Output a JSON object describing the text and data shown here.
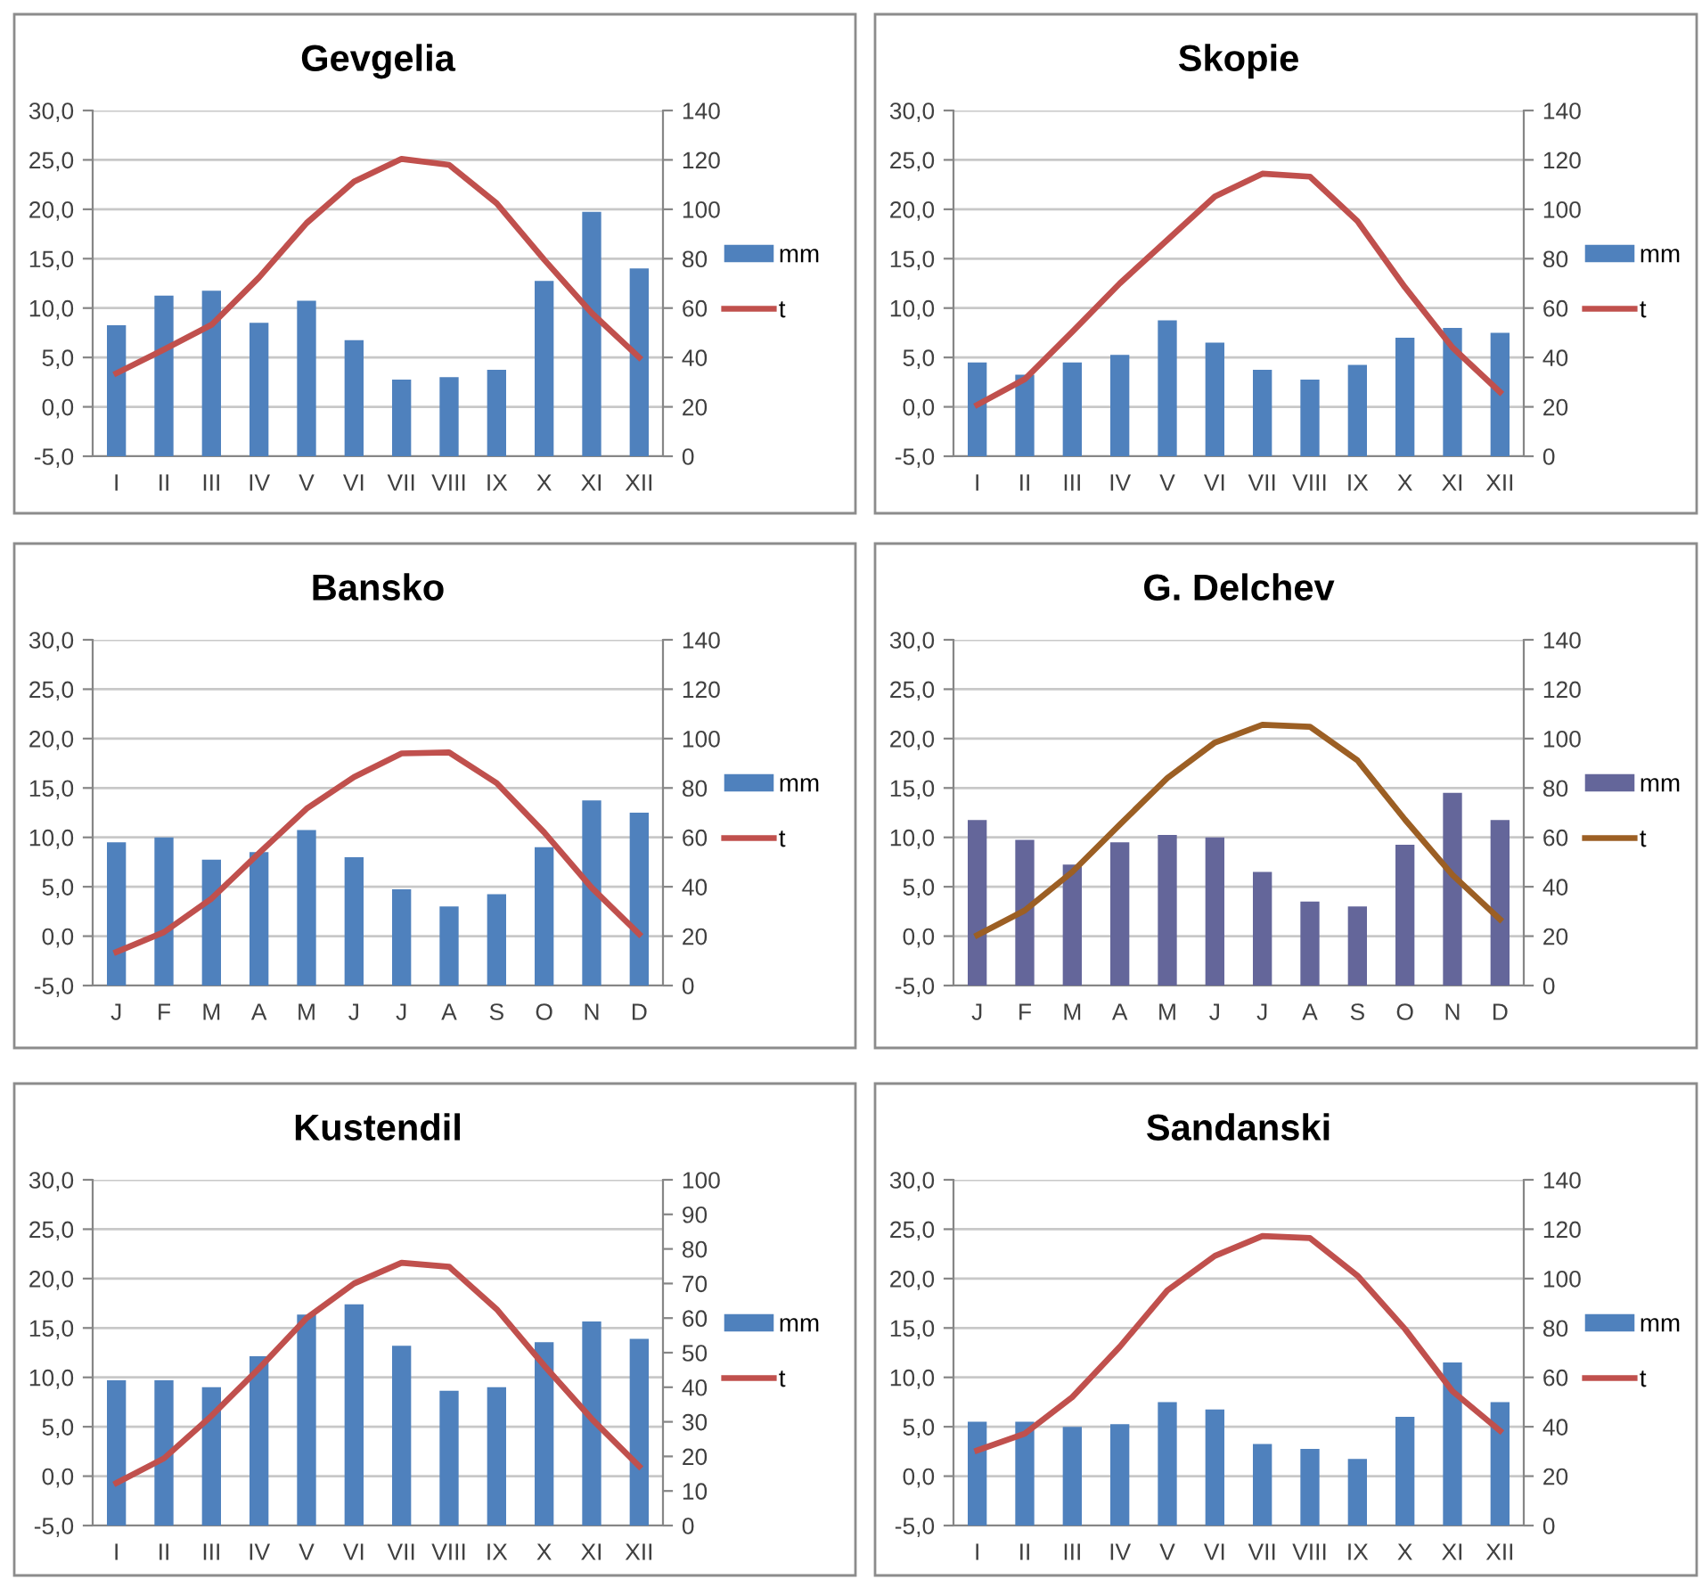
{
  "chart_data": [
    {
      "type": "bar",
      "title": "Gevgelia",
      "categories": [
        "I",
        "II",
        "III",
        "IV",
        "V",
        "VI",
        "VII",
        "VIII",
        "IX",
        "X",
        "XI",
        "XII"
      ],
      "series": [
        {
          "name": "mm",
          "axis": "y2",
          "color": "#4f81bd",
          "values": [
            53,
            65,
            67,
            54,
            63,
            47,
            31,
            32,
            35,
            71,
            99,
            76
          ]
        },
        {
          "name": "t",
          "type": "line",
          "color": "#c0504d",
          "values": [
            3.4,
            5.8,
            8.3,
            13.1,
            18.6,
            22.8,
            25.1,
            24.5,
            20.6,
            14.9,
            9.5,
            5.0
          ]
        }
      ],
      "ylim": [
        -5,
        30
      ],
      "yticks": [
        {
          "value": -5,
          "label": "-5,0"
        },
        {
          "value": 0,
          "label": "0,0"
        },
        {
          "value": 5,
          "label": "5,0"
        },
        {
          "value": 10,
          "label": "10,0"
        },
        {
          "value": 15,
          "label": "15,0"
        },
        {
          "value": 20,
          "label": "20,0"
        },
        {
          "value": 25,
          "label": "25,0"
        },
        {
          "value": 30,
          "label": "30,0"
        }
      ],
      "y2lim": [
        0,
        140
      ],
      "y2ticks": [
        0,
        20,
        40,
        60,
        80,
        100,
        120,
        140
      ],
      "grid": "y",
      "legend": "right"
    },
    {
      "type": "bar",
      "title": "Skopie",
      "categories": [
        "I",
        "II",
        "III",
        "IV",
        "V",
        "VI",
        "VII",
        "VIII",
        "IX",
        "X",
        "XI",
        "XII"
      ],
      "series": [
        {
          "name": "mm",
          "axis": "y2",
          "color": "#4f81bd",
          "values": [
            38,
            33,
            38,
            41,
            55,
            46,
            35,
            31,
            37,
            48,
            52,
            50
          ]
        },
        {
          "name": "t",
          "type": "line",
          "color": "#c0504d",
          "values": [
            0.2,
            2.8,
            7.6,
            12.5,
            16.9,
            21.3,
            23.6,
            23.3,
            18.8,
            12.1,
            6.0,
            1.5
          ]
        }
      ],
      "ylim": [
        -5,
        30
      ],
      "yticks": [
        {
          "value": -5,
          "label": "-5,0"
        },
        {
          "value": 0,
          "label": "0,0"
        },
        {
          "value": 5,
          "label": "5,0"
        },
        {
          "value": 10,
          "label": "10,0"
        },
        {
          "value": 15,
          "label": "15,0"
        },
        {
          "value": 20,
          "label": "20,0"
        },
        {
          "value": 25,
          "label": "25,0"
        },
        {
          "value": 30,
          "label": "30,0"
        }
      ],
      "y2lim": [
        0,
        140
      ],
      "y2ticks": [
        0,
        20,
        40,
        60,
        80,
        100,
        120,
        140
      ],
      "grid": "y",
      "legend": "right"
    },
    {
      "type": "bar",
      "title": "Bansko",
      "categories": [
        "J",
        "F",
        "M",
        "A",
        "M",
        "J",
        "J",
        "A",
        "S",
        "O",
        "N",
        "D"
      ],
      "series": [
        {
          "name": "mm",
          "axis": "y2",
          "color": "#4f81bd",
          "values": [
            58,
            60,
            51,
            54,
            63,
            52,
            39,
            32,
            37,
            56,
            75,
            70
          ]
        },
        {
          "name": "t",
          "type": "line",
          "color": "#c0504d",
          "values": [
            -1.6,
            0.4,
            3.8,
            8.4,
            12.9,
            16.1,
            18.5,
            18.6,
            15.5,
            10.5,
            4.9,
            0.2
          ]
        }
      ],
      "ylim": [
        -5,
        30
      ],
      "yticks": [
        {
          "value": -5,
          "label": "-5,0"
        },
        {
          "value": 0,
          "label": "0,0"
        },
        {
          "value": 5,
          "label": "5,0"
        },
        {
          "value": 10,
          "label": "10,0"
        },
        {
          "value": 15,
          "label": "15,0"
        },
        {
          "value": 20,
          "label": "20,0"
        },
        {
          "value": 25,
          "label": "25,0"
        },
        {
          "value": 30,
          "label": "30,0"
        }
      ],
      "y2lim": [
        0,
        140
      ],
      "y2ticks": [
        0,
        20,
        40,
        60,
        80,
        100,
        120,
        140
      ],
      "grid": "y",
      "legend": "right"
    },
    {
      "type": "bar",
      "title": "G. Delchev",
      "categories": [
        "J",
        "F",
        "M",
        "A",
        "M",
        "J",
        "J",
        "A",
        "S",
        "O",
        "N",
        "D"
      ],
      "series": [
        {
          "name": "mm",
          "axis": "y2",
          "color": "#64669a",
          "values": [
            67,
            59,
            49,
            58,
            61,
            60,
            46,
            34,
            32,
            57,
            78,
            67
          ]
        },
        {
          "name": "t",
          "type": "line",
          "color": "#9c5f24",
          "values": [
            0.1,
            2.6,
            6.5,
            11.3,
            16.0,
            19.6,
            21.4,
            21.2,
            17.8,
            11.8,
            6.2,
            1.7
          ]
        }
      ],
      "ylim": [
        -5,
        30
      ],
      "yticks": [
        {
          "value": -5,
          "label": "-5,0"
        },
        {
          "value": 0,
          "label": "0,0"
        },
        {
          "value": 5,
          "label": "5,0"
        },
        {
          "value": 10,
          "label": "10,0"
        },
        {
          "value": 15,
          "label": "15,0"
        },
        {
          "value": 20,
          "label": "20,0"
        },
        {
          "value": 25,
          "label": "25,0"
        },
        {
          "value": 30,
          "label": "30,0"
        }
      ],
      "y2lim": [
        0,
        140
      ],
      "y2ticks": [
        0,
        20,
        40,
        60,
        80,
        100,
        120,
        140
      ],
      "grid": "y",
      "legend": "right"
    },
    {
      "type": "bar",
      "title": "Kustendil",
      "categories": [
        "I",
        "II",
        "III",
        "IV",
        "V",
        "VI",
        "VII",
        "VIII",
        "IX",
        "X",
        "XI",
        "XII"
      ],
      "series": [
        {
          "name": "mm",
          "axis": "y2",
          "color": "#4f81bd",
          "values": [
            42,
            42,
            40,
            49,
            61,
            64,
            52,
            39,
            40,
            53,
            59,
            54
          ]
        },
        {
          "name": "t",
          "type": "line",
          "color": "#c0504d",
          "values": [
            -0.7,
            1.8,
            6.1,
            10.9,
            16.0,
            19.5,
            21.6,
            21.2,
            16.9,
            11.2,
            5.8,
            1.0
          ]
        }
      ],
      "ylim": [
        -5,
        30
      ],
      "yticks": [
        {
          "value": -5,
          "label": "-5,0"
        },
        {
          "value": 0,
          "label": "0,0"
        },
        {
          "value": 5,
          "label": "5,0"
        },
        {
          "value": 10,
          "label": "10,0"
        },
        {
          "value": 15,
          "label": "15,0"
        },
        {
          "value": 20,
          "label": "20,0"
        },
        {
          "value": 25,
          "label": "25,0"
        },
        {
          "value": 30,
          "label": "30,0"
        }
      ],
      "y2lim": [
        0,
        100
      ],
      "y2ticks": [
        0,
        10,
        20,
        30,
        40,
        50,
        60,
        70,
        80,
        90,
        100
      ],
      "grid": "y",
      "legend": "right"
    },
    {
      "type": "bar",
      "title": "Sandanski",
      "categories": [
        "I",
        "II",
        "III",
        "IV",
        "V",
        "VI",
        "VII",
        "VIII",
        "IX",
        "X",
        "XI",
        "XII"
      ],
      "series": [
        {
          "name": "mm",
          "axis": "y2",
          "color": "#4f81bd",
          "values": [
            42,
            42,
            40,
            41,
            50,
            47,
            33,
            31,
            27,
            44,
            66,
            50
          ]
        },
        {
          "name": "t",
          "type": "line",
          "color": "#c0504d",
          "values": [
            2.6,
            4.3,
            8.0,
            13.1,
            18.8,
            22.3,
            24.3,
            24.1,
            20.3,
            14.9,
            8.6,
            4.6
          ]
        }
      ],
      "ylim": [
        -5,
        30
      ],
      "yticks": [
        {
          "value": -5,
          "label": "-5,0"
        },
        {
          "value": 0,
          "label": "0,0"
        },
        {
          "value": 5,
          "label": "5,0"
        },
        {
          "value": 10,
          "label": "10,0"
        },
        {
          "value": 15,
          "label": "15,0"
        },
        {
          "value": 20,
          "label": "20,0"
        },
        {
          "value": 25,
          "label": "25,0"
        },
        {
          "value": 30,
          "label": "30,0"
        }
      ],
      "y2lim": [
        0,
        140
      ],
      "y2ticks": [
        0,
        20,
        40,
        60,
        80,
        100,
        120,
        140
      ],
      "grid": "y",
      "legend": "right"
    }
  ]
}
